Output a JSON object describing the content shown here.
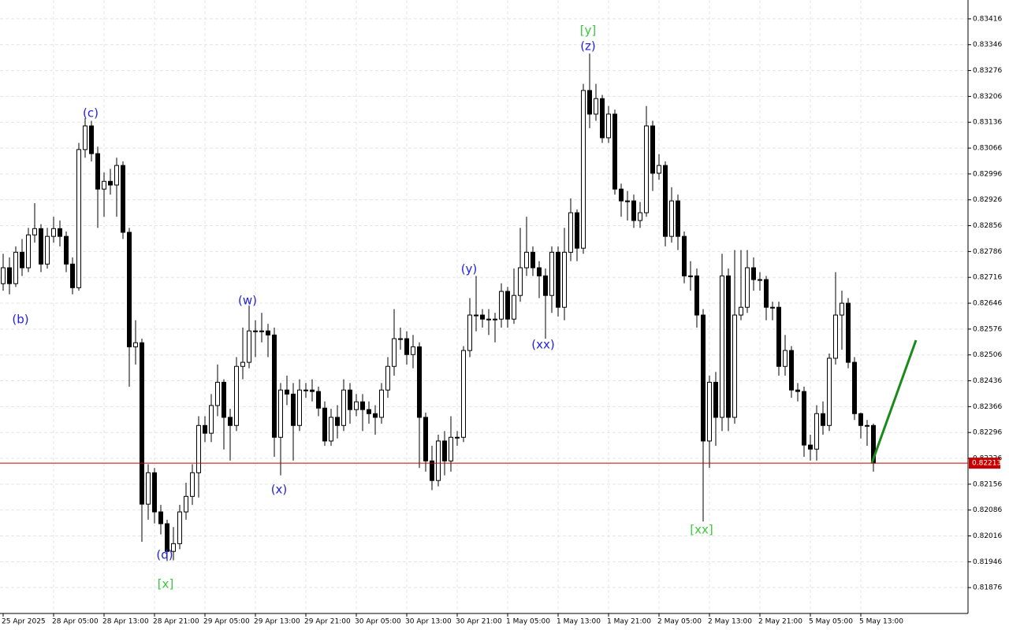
{
  "chart_data": {
    "type": "candlestick",
    "categories": [
      "25 Apr 2025",
      null,
      null,
      null,
      null,
      null,
      null,
      null,
      "28 Apr 05:00",
      null,
      null,
      null,
      null,
      null,
      null,
      null,
      "28 Apr 13:00",
      null,
      null,
      null,
      null,
      null,
      null,
      null,
      "28 Apr 21:00",
      null,
      null,
      null,
      null,
      null,
      null,
      null,
      "29 Apr 05:00",
      null,
      null,
      null,
      null,
      null,
      null,
      null,
      "29 Apr 13:00",
      null,
      null,
      null,
      null,
      null,
      null,
      null,
      "29 Apr 21:00",
      null,
      null,
      null,
      null,
      null,
      null,
      null,
      "30 Apr 05:00",
      null,
      null,
      null,
      null,
      null,
      null,
      null,
      "30 Apr 13:00",
      null,
      null,
      null,
      null,
      null,
      null,
      null,
      "30 Apr 21:00",
      null,
      null,
      null,
      null,
      null,
      null,
      null,
      "1 May 05:00",
      null,
      null,
      null,
      null,
      null,
      null,
      null,
      "1 May 13:00",
      null,
      null,
      null,
      null,
      null,
      null,
      null,
      "1 May 21:00",
      null,
      null,
      null,
      null,
      null,
      null,
      null,
      "2 May 05:00",
      null,
      null,
      null,
      null,
      null,
      null,
      null,
      "2 May 13:00",
      null,
      null,
      null,
      null,
      null,
      null,
      null,
      "2 May 21:00",
      null,
      null,
      null,
      null,
      null,
      null,
      null,
      "5 May 05:00",
      null,
      null,
      null,
      null,
      null,
      null,
      null,
      "5 May 13:00",
      null,
      null
    ],
    "open": [
      0.82699,
      0.82742,
      0.82699,
      0.82784,
      0.82742,
      0.82831,
      0.82848,
      0.82752,
      0.82827,
      0.82848,
      0.82827,
      0.82752,
      0.82688,
      0.83062,
      0.83126,
      0.83051,
      0.82955,
      0.82976,
      0.82966,
      0.83019,
      0.82838,
      0.82528,
      0.82539,
      0.82102,
      0.82187,
      0.82081,
      0.82049,
      0.81974,
      0.81995,
      0.82081,
      0.82123,
      0.82187,
      0.82315,
      0.82294,
      0.82369,
      0.82432,
      0.82337,
      0.82315,
      0.82475,
      0.82486,
      0.82571,
      0.82571,
      0.82571,
      0.8256,
      0.82283,
      0.82411,
      0.824,
      0.82315,
      0.82411,
      0.82411,
      0.82407,
      0.82362,
      0.82273,
      0.82337,
      0.82315,
      0.82411,
      0.82358,
      0.82379,
      0.82358,
      0.82347,
      0.82337,
      0.82411,
      0.82475,
      0.8255,
      0.8255,
      0.82507,
      0.82528,
      0.82337,
      0.82219,
      0.82166,
      0.82273,
      0.82219,
      0.82283,
      0.82283,
      0.82518,
      0.82614,
      0.82614,
      0.82603,
      0.82603,
      0.82603,
      0.82678,
      0.82603,
      0.82667,
      0.82742,
      0.82784,
      0.82742,
      0.8272,
      0.82667,
      0.82784,
      0.82635,
      0.82784,
      0.82891,
      0.82795,
      0.83222,
      0.83158,
      0.832,
      0.83094,
      0.83158,
      0.82955,
      0.82923,
      0.82923,
      0.8287,
      0.82891,
      0.83126,
      0.82998,
      0.83019,
      0.82827,
      0.82923,
      0.82827,
      0.8272,
      0.8272,
      0.82614,
      0.82273,
      0.82432,
      0.82337,
      0.8272,
      0.82337,
      0.82614,
      0.82635,
      0.82742,
      0.8271,
      0.8271,
      0.82635,
      0.82635,
      0.82475,
      0.82518,
      0.82411,
      0.82407,
      0.82262,
      0.82251,
      0.82347,
      0.82315,
      0.82497,
      0.82614,
      0.82646,
      0.82486,
      0.82347,
      0.82315,
      0.82315
    ],
    "high": [
      0.8278,
      0.8277,
      0.828,
      0.8282,
      0.8285,
      0.82917,
      0.8286,
      0.8285,
      0.8288,
      0.8287,
      0.8284,
      0.8277,
      0.8308,
      0.83147,
      0.8314,
      0.8307,
      0.83,
      0.8301,
      0.8304,
      0.8303,
      0.8285,
      0.826,
      0.8255,
      0.8221,
      0.822,
      0.821,
      0.8206,
      0.8204,
      0.821,
      0.8216,
      0.8221,
      0.8234,
      0.8234,
      0.824,
      0.8248,
      0.8244,
      0.8236,
      0.825,
      0.8258,
      0.8264,
      0.826,
      0.8262,
      0.8259,
      0.8258,
      0.8243,
      0.8245,
      0.8243,
      0.8244,
      0.8243,
      0.8244,
      0.8242,
      0.8238,
      0.8236,
      0.8237,
      0.8244,
      0.8243,
      0.824,
      0.824,
      0.8238,
      0.8237,
      0.8243,
      0.825,
      0.8263,
      0.8258,
      0.8257,
      0.8256,
      0.8254,
      0.8235,
      0.8226,
      0.8229,
      0.823,
      0.8234,
      0.823,
      0.8253,
      0.8266,
      0.8272,
      0.8263,
      0.8263,
      0.8262,
      0.827,
      0.8269,
      0.8274,
      0.8285,
      0.8288,
      0.828,
      0.8276,
      0.8274,
      0.828,
      0.828,
      0.8285,
      0.8293,
      0.829,
      0.8324,
      0.83322,
      0.8324,
      0.8321,
      0.8318,
      0.8317,
      0.8297,
      0.8295,
      0.8294,
      0.8292,
      0.8318,
      0.8314,
      0.8305,
      0.8303,
      0.8296,
      0.8294,
      0.8284,
      0.8276,
      0.8274,
      0.8263,
      0.8245,
      0.8246,
      0.8278,
      0.8274,
      0.8279,
      0.8279,
      0.8279,
      0.8277,
      0.8273,
      0.8272,
      0.8265,
      0.8265,
      0.8256,
      0.8253,
      0.8243,
      0.8242,
      0.8229,
      0.8237,
      0.8238,
      0.8251,
      0.8273,
      0.8268,
      0.8266,
      0.825,
      0.8235,
      0.8233,
      0.8232
    ],
    "low": [
      0.8268,
      0.8267,
      0.8269,
      0.8272,
      0.8273,
      0.8281,
      0.8273,
      0.8274,
      0.8281,
      0.828,
      0.8273,
      0.8267,
      0.8268,
      0.8304,
      0.8303,
      0.8285,
      0.8288,
      0.8294,
      0.8288,
      0.8282,
      0.8242,
      0.8248,
      0.82,
      0.8206,
      0.8205,
      0.8202,
      0.81948,
      0.8195,
      0.8198,
      0.8206,
      0.821,
      0.8212,
      0.8227,
      0.8227,
      0.8234,
      0.8225,
      0.8222,
      0.823,
      0.8244,
      0.8247,
      0.825,
      0.8254,
      0.825,
      0.8223,
      0.8218,
      0.8237,
      0.8222,
      0.823,
      0.8239,
      0.8238,
      0.8234,
      0.8226,
      0.8226,
      0.8228,
      0.823,
      0.8232,
      0.8234,
      0.823,
      0.8232,
      0.8229,
      0.8232,
      0.8239,
      0.8245,
      0.8252,
      0.8248,
      0.8247,
      0.822,
      0.8219,
      0.8214,
      0.8215,
      0.8218,
      0.8219,
      0.8226,
      0.8227,
      0.825,
      0.8257,
      0.8258,
      0.8256,
      0.8254,
      0.8258,
      0.8258,
      0.8259,
      0.8265,
      0.8272,
      0.8272,
      0.8266,
      0.8255,
      0.8262,
      0.8261,
      0.826,
      0.8276,
      0.8276,
      0.8278,
      0.8312,
      0.8314,
      0.8308,
      0.8308,
      0.8294,
      0.8288,
      0.8287,
      0.8285,
      0.8285,
      0.8288,
      0.8295,
      0.8298,
      0.828,
      0.8281,
      0.8279,
      0.827,
      0.8268,
      0.8258,
      0.82055,
      0.822,
      0.8226,
      0.823,
      0.823,
      0.8232,
      0.826,
      0.8262,
      0.8268,
      0.8268,
      0.826,
      0.826,
      0.8245,
      0.8245,
      0.8239,
      0.8238,
      0.8223,
      0.8222,
      0.8222,
      0.8229,
      0.823,
      0.8248,
      0.8252,
      0.8247,
      0.8233,
      0.8228,
      0.8226,
      0.8219
    ],
    "close": [
      0.82742,
      0.82699,
      0.82784,
      0.82742,
      0.82831,
      0.82848,
      0.82752,
      0.82827,
      0.82848,
      0.82827,
      0.82752,
      0.82688,
      0.83062,
      0.83126,
      0.83051,
      0.82955,
      0.82976,
      0.82966,
      0.83019,
      0.82838,
      0.82528,
      0.82539,
      0.82102,
      0.82187,
      0.82081,
      0.82049,
      0.81974,
      0.81995,
      0.82081,
      0.82123,
      0.82187,
      0.82315,
      0.82294,
      0.82369,
      0.82432,
      0.82337,
      0.82315,
      0.82475,
      0.82486,
      0.82571,
      0.82571,
      0.82571,
      0.8256,
      0.82283,
      0.82411,
      0.824,
      0.82315,
      0.82411,
      0.82411,
      0.82407,
      0.82362,
      0.82273,
      0.82337,
      0.82315,
      0.82411,
      0.82358,
      0.82379,
      0.82358,
      0.82347,
      0.82337,
      0.82411,
      0.82475,
      0.8255,
      0.8255,
      0.82507,
      0.82528,
      0.82337,
      0.82219,
      0.82166,
      0.82273,
      0.82219,
      0.82283,
      0.82283,
      0.82518,
      0.82614,
      0.82614,
      0.82603,
      0.82603,
      0.82603,
      0.82678,
      0.82603,
      0.82667,
      0.82742,
      0.82784,
      0.82742,
      0.8272,
      0.82667,
      0.82784,
      0.82635,
      0.82784,
      0.82891,
      0.82795,
      0.83222,
      0.83158,
      0.832,
      0.83094,
      0.83158,
      0.82955,
      0.82923,
      0.82923,
      0.8287,
      0.82891,
      0.83126,
      0.82998,
      0.83019,
      0.82827,
      0.82923,
      0.82827,
      0.8272,
      0.8272,
      0.82614,
      0.82273,
      0.82432,
      0.82337,
      0.8272,
      0.82337,
      0.82614,
      0.82635,
      0.82742,
      0.8271,
      0.8271,
      0.82635,
      0.82635,
      0.82475,
      0.82518,
      0.82411,
      0.82407,
      0.82262,
      0.82251,
      0.82347,
      0.82315,
      0.82497,
      0.82614,
      0.82646,
      0.82486,
      0.82347,
      0.82315,
      0.82315,
      0.82213
    ],
    "up_color": "#ffffff",
    "down_color": "#000000",
    "wick_color": "#000000",
    "ylim": [
      0.81806,
      0.83467
    ],
    "yticks": [
      0.83416,
      0.83346,
      0.83276,
      0.83206,
      0.83136,
      0.83066,
      0.82996,
      0.82926,
      0.82856,
      0.82786,
      0.82716,
      0.82646,
      0.82576,
      0.82506,
      0.82436,
      0.82366,
      0.82296,
      0.82226,
      0.82156,
      0.82086,
      0.82016,
      0.81946,
      0.81876
    ],
    "grid": true,
    "last_price": 0.82213,
    "last_price_color": "#c80000",
    "annotations": [
      {
        "text": "(b)",
        "color": "#1e1ee6"
      },
      {
        "text": "(c)",
        "color": "#1e1ee6"
      },
      {
        "text": "(d)",
        "color": "#1e1ee6"
      },
      {
        "text": "[x]",
        "color": "#3cc83c"
      },
      {
        "text": "(w)",
        "color": "#1e1ee6"
      },
      {
        "text": "(x)",
        "color": "#1e1ee6"
      },
      {
        "text": "(y)",
        "color": "#1e1ee6"
      },
      {
        "text": "(xx)",
        "color": "#1e1ee6"
      },
      {
        "text": "[y]",
        "color": "#3cc83c"
      },
      {
        "text": "(z)",
        "color": "#1e1ee6"
      },
      {
        "text": "[xx]",
        "color": "#3cc83c"
      }
    ]
  }
}
